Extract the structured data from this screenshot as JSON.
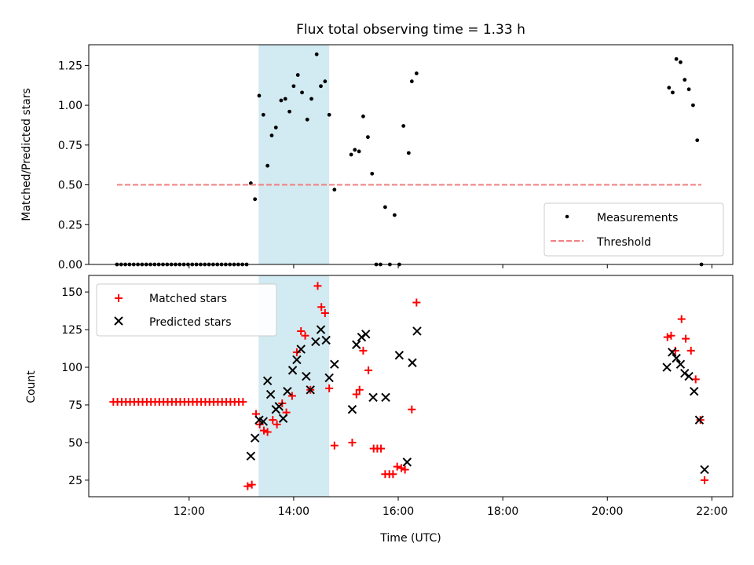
{
  "figure_title": "Flux total observing time = 1.33 h",
  "colors": {
    "measurement": "#000000",
    "threshold": "#f08080",
    "matched": "#ff0000",
    "predicted": "#000000",
    "window": "#add8e6"
  },
  "chart_data": [
    {
      "type": "scatter",
      "title": "Flux total observing time = 1.33 h",
      "xlabel": "",
      "ylabel": "Matched/Predicted stars",
      "xlim": [
        10.08,
        22.4
      ],
      "ylim": [
        0,
        1.38
      ],
      "yticks": [
        0.0,
        0.25,
        0.5,
        0.75,
        1.0,
        1.25
      ],
      "ytick_labels": [
        "0.00",
        "0.25",
        "0.50",
        "0.75",
        "1.00",
        "1.25"
      ],
      "xticks": [
        12,
        14,
        16,
        18,
        20,
        22
      ],
      "highlight_window": [
        13.33,
        14.68
      ],
      "legend_position": "lower right",
      "legend": [
        "Measurements",
        "Threshold"
      ],
      "series": [
        {
          "name": "Measurements",
          "kind": "dots",
          "x": [
            10.62,
            10.7,
            10.78,
            10.86,
            10.94,
            11.02,
            11.1,
            11.18,
            11.26,
            11.34,
            11.42,
            11.5,
            11.58,
            11.66,
            11.74,
            11.82,
            11.9,
            11.98,
            12.06,
            12.14,
            12.22,
            12.3,
            12.38,
            12.46,
            12.54,
            12.62,
            12.7,
            12.78,
            12.86,
            12.94,
            13.02,
            13.1,
            13.18,
            13.26,
            13.34,
            13.42,
            13.5,
            13.58,
            13.66,
            13.76,
            13.84,
            13.92,
            14.0,
            14.08,
            14.16,
            14.26,
            14.34,
            14.44,
            14.52,
            14.6,
            14.68,
            14.78,
            15.1,
            15.17,
            15.25,
            15.33,
            15.42,
            15.5,
            15.58,
            15.66,
            15.75,
            15.84,
            15.93,
            16.02,
            16.1,
            16.2,
            16.26,
            16.35,
            21.18,
            21.25,
            21.32,
            21.4,
            21.48,
            21.56,
            21.64,
            21.72,
            21.8
          ],
          "y": [
            0,
            0,
            0,
            0,
            0,
            0,
            0,
            0,
            0,
            0,
            0,
            0,
            0,
            0,
            0,
            0,
            0,
            0,
            0,
            0,
            0,
            0,
            0,
            0,
            0,
            0,
            0,
            0,
            0,
            0,
            0,
            0,
            0.51,
            0.41,
            1.06,
            0.94,
            0.62,
            0.81,
            0.86,
            1.03,
            1.04,
            0.96,
            1.12,
            1.19,
            1.08,
            0.91,
            1.04,
            1.32,
            1.12,
            1.15,
            0.94,
            0.47,
            0.69,
            0.72,
            0.71,
            0.93,
            0.8,
            0.57,
            0,
            0,
            0.36,
            0,
            0.31,
            0,
            0.87,
            0.7,
            1.15,
            1.2,
            1.11,
            1.08,
            1.29,
            1.27,
            1.16,
            1.1,
            1.0,
            0.78,
            0.0
          ]
        },
        {
          "name": "Threshold",
          "kind": "dashed-line",
          "x": [
            10.62,
            21.8
          ],
          "y": [
            0.5,
            0.5
          ]
        }
      ]
    },
    {
      "type": "scatter",
      "title": "",
      "xlabel": "Time (UTC)",
      "ylabel": "Count",
      "xlim": [
        10.08,
        22.4
      ],
      "ylim": [
        14,
        161
      ],
      "yticks": [
        25,
        50,
        75,
        100,
        125,
        150
      ],
      "ytick_labels": [
        "25",
        "50",
        "75",
        "100",
        "125",
        "150"
      ],
      "xticks": [
        12,
        14,
        16,
        18,
        20,
        22
      ],
      "xtick_labels": [
        "12:00",
        "14:00",
        "16:00",
        "18:00",
        "20:00",
        "22:00"
      ],
      "highlight_window": [
        13.33,
        14.68
      ],
      "legend_position": "upper left",
      "legend": [
        "Matched stars",
        "Predicted stars"
      ],
      "series": [
        {
          "name": "Matched stars",
          "kind": "plus",
          "x": [
            10.55,
            10.63,
            10.71,
            10.79,
            10.87,
            10.95,
            11.03,
            11.11,
            11.19,
            11.27,
            11.35,
            11.43,
            11.51,
            11.59,
            11.67,
            11.75,
            11.83,
            11.91,
            11.99,
            12.07,
            12.15,
            12.23,
            12.31,
            12.39,
            12.47,
            12.55,
            12.63,
            12.71,
            12.79,
            12.87,
            12.95,
            13.03,
            13.12,
            13.2,
            13.28,
            13.35,
            13.43,
            13.5,
            13.6,
            13.68,
            13.78,
            13.86,
            13.97,
            14.06,
            14.14,
            14.22,
            14.32,
            14.46,
            14.53,
            14.6,
            14.68,
            14.78,
            15.12,
            15.2,
            15.26,
            15.33,
            15.43,
            15.53,
            15.6,
            15.67,
            15.75,
            15.83,
            15.9,
            15.98,
            16.06,
            16.13,
            16.26,
            16.35,
            21.15,
            21.22,
            21.3,
            21.42,
            21.5,
            21.6,
            21.69,
            21.78,
            21.86
          ],
          "y": [
            77,
            77,
            77,
            77,
            77,
            77,
            77,
            77,
            77,
            77,
            77,
            77,
            77,
            77,
            77,
            77,
            77,
            77,
            77,
            77,
            77,
            77,
            77,
            77,
            77,
            77,
            77,
            77,
            77,
            77,
            77,
            77,
            21,
            22,
            69,
            62,
            58,
            57,
            65,
            62,
            76,
            70,
            81,
            110,
            124,
            121,
            85,
            154,
            140,
            136,
            86,
            48,
            50,
            82,
            85,
            111,
            98,
            46,
            46,
            46,
            29,
            29,
            29,
            34,
            33,
            32,
            72,
            143,
            120,
            121,
            111,
            132,
            119,
            111,
            92,
            65,
            25
          ]
        },
        {
          "name": "Predicted stars",
          "kind": "x",
          "x": [
            13.18,
            13.26,
            13.34,
            13.42,
            13.5,
            13.56,
            13.66,
            13.72,
            13.8,
            13.88,
            13.98,
            14.06,
            14.14,
            14.24,
            14.32,
            14.42,
            14.52,
            14.62,
            14.68,
            14.78,
            15.12,
            15.2,
            15.3,
            15.38,
            15.52,
            15.76,
            16.02,
            16.17,
            16.27,
            16.36,
            21.14,
            21.24,
            21.32,
            21.4,
            21.48,
            21.56,
            21.66,
            21.76,
            21.86
          ],
          "y": [
            41,
            53,
            65,
            64,
            91,
            82,
            72,
            74,
            66,
            84,
            98,
            105,
            112,
            94,
            85,
            117,
            125,
            118,
            93,
            102,
            72,
            115,
            120,
            122,
            80,
            80,
            108,
            37,
            103,
            124,
            100,
            110,
            106,
            102,
            96,
            94,
            84,
            65,
            32
          ]
        }
      ]
    }
  ]
}
